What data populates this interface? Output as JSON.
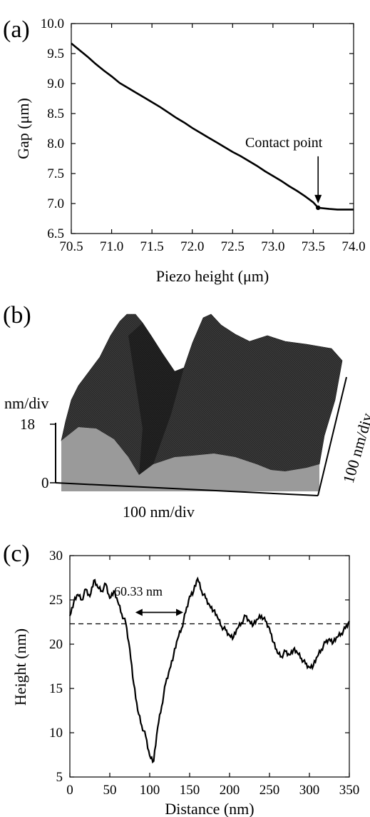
{
  "chart_data": [
    {
      "panel": "(a)",
      "type": "line",
      "xlabel": "Piezo height (μm)",
      "ylabel": "Gap (μm)",
      "xlim": [
        70.5,
        74.0
      ],
      "ylim": [
        6.5,
        10.0
      ],
      "xticks": [
        "70.5",
        "71.0",
        "71.5",
        "72.0",
        "72.5",
        "73.0",
        "73.5",
        "74.0"
      ],
      "yticks": [
        "6.5",
        "7.0",
        "7.5",
        "8.0",
        "8.5",
        "9.0",
        "9.5",
        "10.0"
      ],
      "series": [
        {
          "x": [
            70.5,
            70.6,
            70.7,
            70.8,
            70.9,
            71.0,
            71.1,
            71.2,
            71.3,
            71.4,
            71.5,
            71.6,
            71.7,
            71.8,
            71.9,
            72.0,
            72.1,
            72.2,
            72.3,
            72.4,
            72.5,
            72.6,
            72.7,
            72.8,
            72.9,
            73.0,
            73.1,
            73.2,
            73.3,
            73.4,
            73.5,
            73.56,
            73.7,
            73.8,
            73.9,
            74.0
          ],
          "y": [
            9.67,
            9.56,
            9.45,
            9.33,
            9.22,
            9.12,
            9.01,
            8.93,
            8.85,
            8.77,
            8.69,
            8.61,
            8.52,
            8.43,
            8.35,
            8.26,
            8.18,
            8.1,
            8.02,
            7.94,
            7.86,
            7.79,
            7.71,
            7.63,
            7.54,
            7.46,
            7.38,
            7.29,
            7.21,
            7.12,
            7.02,
            6.93,
            6.91,
            6.9,
            6.9,
            6.9
          ]
        }
      ],
      "annotation": {
        "text": "Contact point",
        "x": 73.56,
        "y": 6.93
      }
    },
    {
      "panel": "(b)",
      "type": "surface",
      "z_axis_label": "nm/div",
      "z_ticks": [
        "18",
        "0"
      ],
      "x_axis_label": "100 nm/div",
      "y_axis_label": "100 nm/div"
    },
    {
      "panel": "(c)",
      "type": "line",
      "xlabel": "Distance (nm)",
      "ylabel": "Height (nm)",
      "xlim": [
        0,
        350
      ],
      "ylim": [
        5,
        30
      ],
      "xticks": [
        "0",
        "50",
        "100",
        "150",
        "200",
        "250",
        "300",
        "350"
      ],
      "yticks": [
        "5",
        "10",
        "15",
        "20",
        "25",
        "30"
      ],
      "reference_line_y": 22.3,
      "series": [
        {
          "x": [
            0,
            5,
            10,
            15,
            20,
            25,
            30,
            35,
            40,
            45,
            50,
            55,
            60,
            65,
            70,
            75,
            80,
            85,
            90,
            95,
            100,
            105,
            110,
            115,
            120,
            125,
            130,
            135,
            140,
            145,
            150,
            155,
            160,
            165,
            170,
            175,
            180,
            185,
            190,
            195,
            200,
            205,
            210,
            215,
            220,
            225,
            230,
            235,
            240,
            245,
            250,
            255,
            260,
            265,
            270,
            275,
            280,
            285,
            290,
            295,
            300,
            305,
            310,
            315,
            320,
            325,
            330,
            335,
            340,
            345,
            350
          ],
          "y": [
            23.2,
            24.8,
            25.6,
            25.0,
            26.2,
            25.4,
            27.2,
            26.4,
            26.0,
            26.8,
            25.2,
            26.0,
            24.8,
            23.4,
            22.4,
            19.5,
            15.5,
            12.5,
            10.8,
            9.6,
            7.4,
            6.8,
            10.6,
            13.0,
            15.6,
            17.2,
            18.8,
            20.6,
            21.8,
            23.6,
            25.4,
            26.0,
            27.4,
            26.0,
            25.2,
            24.4,
            23.8,
            23.0,
            22.0,
            21.6,
            21.0,
            20.8,
            21.8,
            22.4,
            23.2,
            22.6,
            22.2,
            22.8,
            23.2,
            22.6,
            21.8,
            20.2,
            19.0,
            18.6,
            19.2,
            18.8,
            19.4,
            19.0,
            18.4,
            17.8,
            17.4,
            17.6,
            18.6,
            19.4,
            20.2,
            20.6,
            20.2,
            20.8,
            21.2,
            21.8,
            22.6
          ]
        }
      ],
      "annotation": {
        "text": "60.33 nm",
        "x_from": 82,
        "x_to": 142,
        "y": 22.3
      }
    }
  ],
  "labels": {
    "a": "(a)",
    "b": "(b)",
    "c": "(c)",
    "contact": "Contact point",
    "width": "60.33 nm"
  }
}
